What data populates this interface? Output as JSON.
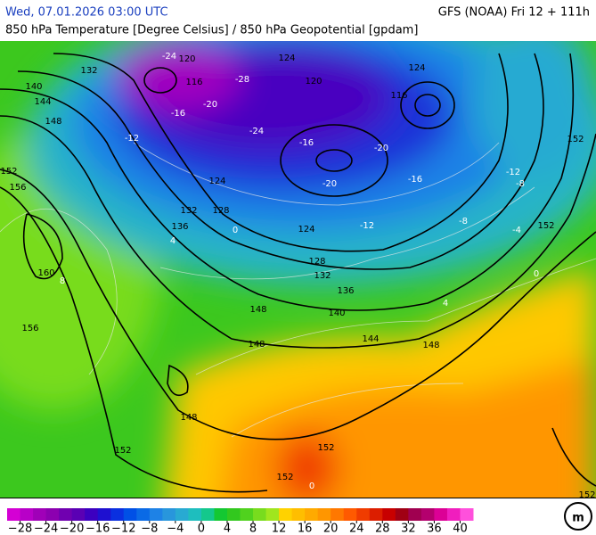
{
  "header": {
    "date": "Wed, 07.01.2026 03:00 UTC",
    "model": "GFS (NOAA) Fri 12 + 111h",
    "subtitle": "850 hPa Temperature [Degree Celsius] / 850 hPa Geopotential [gpdam]"
  },
  "map": {
    "contour_labels": [
      "132",
      "140",
      "144",
      "148",
      "152",
      "156",
      "160",
      "156",
      "148",
      "152",
      "152",
      "152",
      "148",
      "144",
      "140",
      "136",
      "132",
      "128",
      "124",
      "136",
      "132",
      "128",
      "124",
      "120",
      "116",
      "124",
      "120",
      "116",
      "124",
      "152",
      "152",
      "148",
      "148",
      "152"
    ],
    "temperature_labels": [
      "-24",
      "-28",
      "-20",
      "-16",
      "-12",
      "-24",
      "-16",
      "-20",
      "-20",
      "-16",
      "-12",
      "-8",
      "-4",
      "0",
      "4",
      "8",
      "0",
      "-8",
      "-12",
      "0",
      "4"
    ]
  },
  "colorbar": {
    "colors": [
      "#d400d4",
      "#b800c8",
      "#a000b8",
      "#8c00b0",
      "#7000b0",
      "#5a00b4",
      "#3c00c0",
      "#1e10d0",
      "#0a30e0",
      "#0050e6",
      "#0a6ae6",
      "#1e82e6",
      "#2896dc",
      "#28aad2",
      "#1ebebe",
      "#14c88c",
      "#14c832",
      "#32c81e",
      "#50d21e",
      "#78dc1e",
      "#a0e61e",
      "#ffd200",
      "#ffbe00",
      "#ffaa00",
      "#ff9600",
      "#ff7800",
      "#ff5a00",
      "#f03c00",
      "#dc1e00",
      "#c80000",
      "#a00014",
      "#a00050",
      "#b4006e",
      "#dc0096",
      "#f01ebe",
      "#ff50dc"
    ],
    "ticks": [
      {
        "value": -28,
        "label": "−28"
      },
      {
        "value": -24,
        "label": "−24"
      },
      {
        "value": -20,
        "label": "−20"
      },
      {
        "value": -16,
        "label": "−16"
      },
      {
        "value": -12,
        "label": "−12"
      },
      {
        "value": -8,
        "label": "−8"
      },
      {
        "value": -4,
        "label": "−4"
      },
      0,
      4,
      8,
      12,
      16,
      20,
      24,
      28,
      32,
      36,
      40
    ]
  }
}
